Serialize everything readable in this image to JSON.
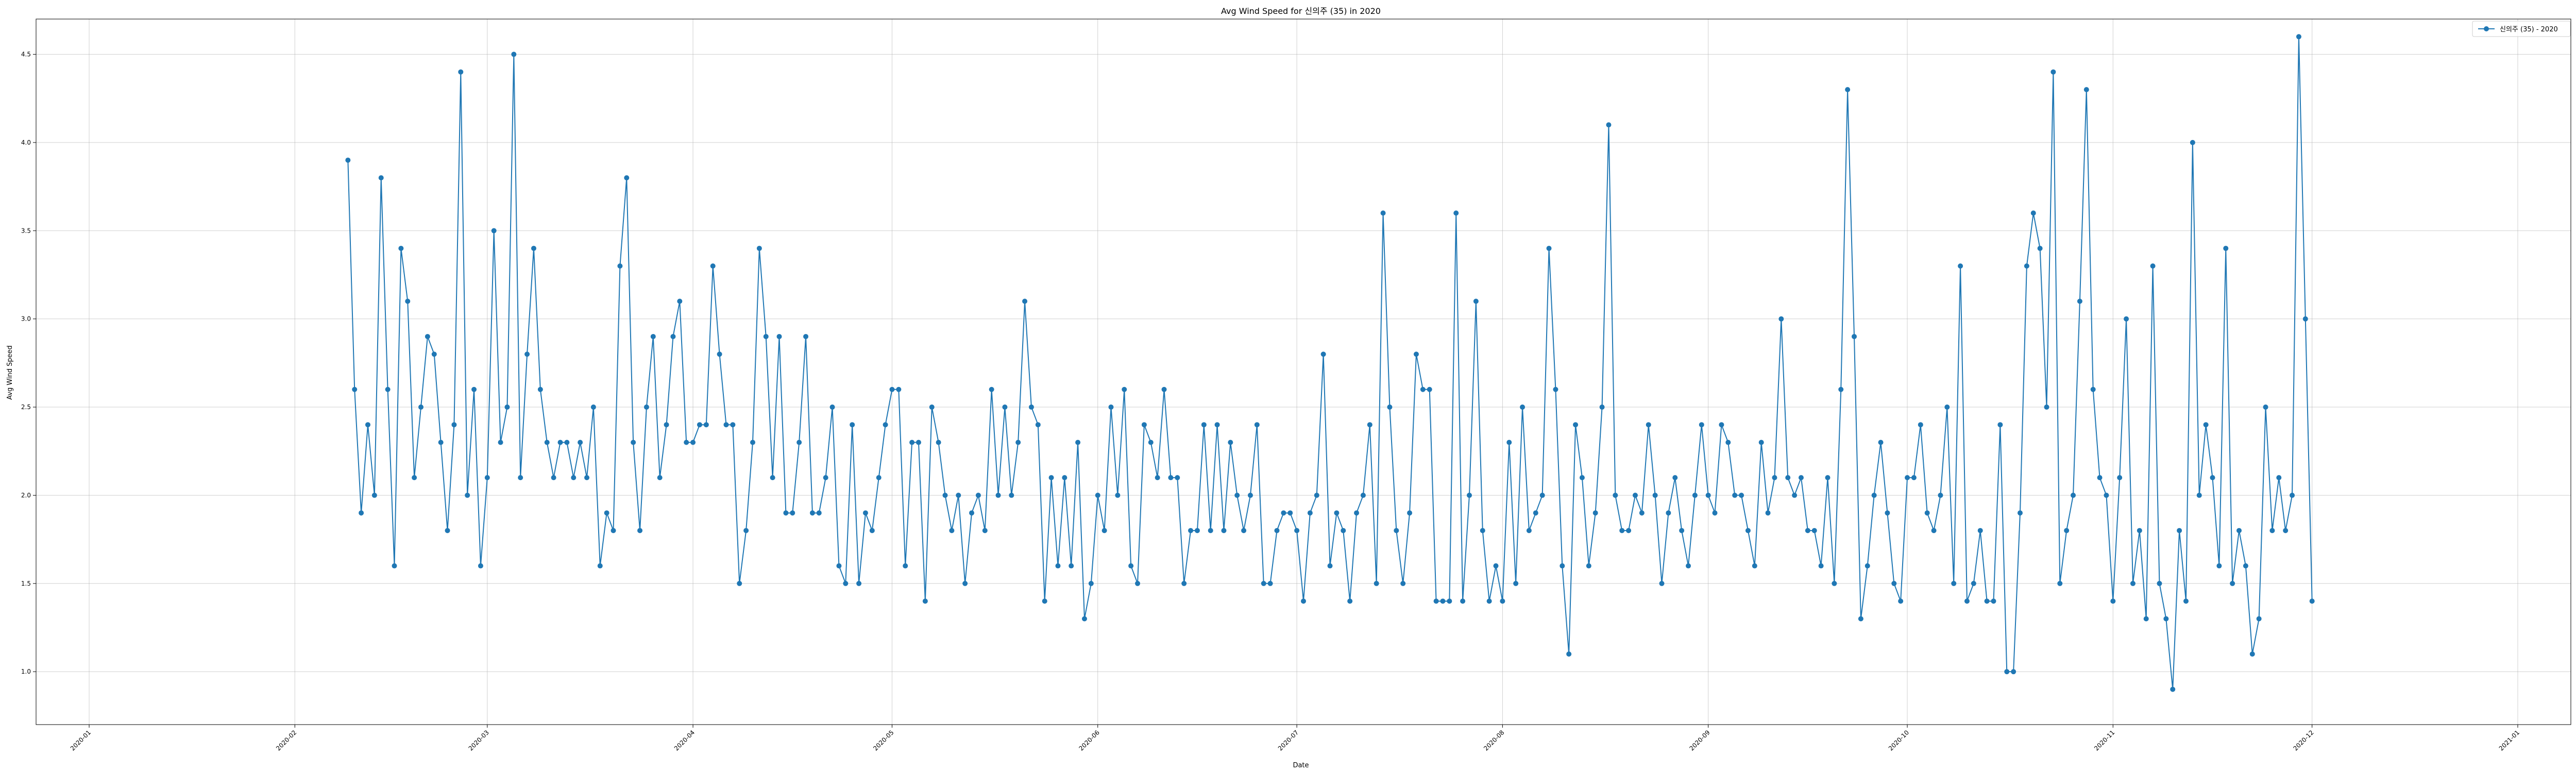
{
  "chart_data": {
    "type": "line",
    "title": "Avg Wind Speed for 신의주 (35) in 2020",
    "xlabel": "Date",
    "ylabel": "Avg Wind Speed",
    "x_range": [
      "2019-12-24",
      "2021-01-09"
    ],
    "y_range": [
      0.7,
      4.7
    ],
    "x_ticks": [
      "2020-01",
      "2020-02",
      "2020-03",
      "2020-04",
      "2020-05",
      "2020-06",
      "2020-07",
      "2020-08",
      "2020-09",
      "2020-10",
      "2020-11",
      "2020-12",
      "2021-01"
    ],
    "x_tick_labels": [
      "2020-01",
      "2020-02",
      "2020-03",
      "2020-04",
      "2020-05",
      "2020-06",
      "2020-07",
      "2020-08",
      "2020-09",
      "2020-10",
      "2020-11",
      "2020-12",
      "2021-01"
    ],
    "y_ticks": [
      1.0,
      1.5,
      2.0,
      2.5,
      3.0,
      3.5,
      4.0,
      4.5
    ],
    "y_tick_labels": [
      "1.0",
      "1.5",
      "2.0",
      "2.5",
      "3.0",
      "3.5",
      "4.0",
      "4.5"
    ],
    "grid": true,
    "legend_position": "top-right",
    "series": [
      {
        "name": "신의주 (35) - 2020",
        "color": "#1f77b4",
        "marker": "circle",
        "start_date": "2020-02-09",
        "values": [
          3.9,
          2.6,
          1.9,
          2.4,
          2.0,
          3.8,
          2.6,
          1.6,
          3.4,
          3.1,
          2.1,
          2.5,
          2.9,
          2.8,
          2.3,
          1.8,
          2.4,
          4.4,
          2.0,
          2.6,
          1.6,
          2.1,
          3.5,
          2.3,
          2.5,
          4.5,
          2.1,
          2.8,
          3.4,
          2.6,
          2.3,
          2.1,
          2.3,
          2.3,
          2.1,
          2.3,
          2.1,
          2.5,
          1.6,
          1.9,
          1.8,
          3.3,
          3.8,
          2.3,
          1.8,
          2.5,
          2.9,
          2.1,
          2.4,
          2.9,
          3.1,
          2.3,
          2.3,
          2.4,
          2.4,
          3.3,
          2.8,
          2.4,
          2.4,
          1.5,
          1.8,
          2.3,
          3.4,
          2.9,
          2.1,
          2.9,
          1.9,
          1.9,
          2.3,
          2.9,
          1.9,
          1.9,
          2.1,
          2.5,
          1.6,
          1.5,
          2.4,
          1.5,
          1.9,
          1.8,
          2.1,
          2.4,
          2.6,
          2.6,
          1.6,
          2.3,
          2.3,
          1.4,
          2.5,
          2.3,
          2.0,
          1.8,
          2.0,
          1.5,
          1.9,
          2.0,
          1.8,
          2.6,
          2.0,
          2.5,
          2.0,
          2.3,
          3.1,
          2.5,
          2.4,
          1.4,
          2.1,
          1.6,
          2.1,
          1.6,
          2.3,
          1.3,
          1.5,
          2.0,
          1.8,
          2.5,
          2.0,
          2.6,
          1.6,
          1.5,
          2.4,
          2.3,
          2.1,
          2.6,
          2.1,
          2.1,
          1.5,
          1.8,
          1.8,
          2.4,
          1.8,
          2.4,
          1.8,
          2.3,
          2.0,
          1.8,
          2.0,
          2.4,
          1.5,
          1.5,
          1.8,
          1.9,
          1.9,
          1.8,
          1.4,
          1.9,
          2.0,
          2.8,
          1.6,
          1.9,
          1.8,
          1.4,
          1.9,
          2.0,
          2.4,
          1.5,
          3.6,
          2.5,
          1.8,
          1.5,
          1.9,
          2.8,
          2.6,
          2.6,
          1.4,
          1.4,
          1.4,
          3.6,
          1.4,
          2.0,
          3.1,
          1.8,
          1.4,
          1.6,
          1.4,
          2.3,
          1.5,
          2.5,
          1.8,
          1.9,
          2.0,
          3.4,
          2.6,
          1.6,
          1.1,
          2.4,
          2.1,
          1.6,
          1.9,
          2.5,
          4.1,
          2.0,
          1.8,
          1.8,
          2.0,
          1.9,
          2.4,
          2.0,
          1.5,
          1.9,
          2.1,
          1.8,
          1.6,
          2.0,
          2.4,
          2.0,
          1.9,
          2.4,
          2.3,
          2.0,
          2.0,
          1.8,
          1.6,
          2.3,
          1.9,
          2.1,
          3.0,
          2.1,
          2.0,
          2.1,
          1.8,
          1.8,
          1.6,
          2.1,
          1.5,
          2.6,
          4.3,
          2.9,
          1.3,
          1.6,
          2.0,
          2.3,
          1.9,
          1.5,
          1.4,
          2.1,
          2.1,
          2.4,
          1.9,
          1.8,
          2.0,
          2.5,
          1.5,
          3.3,
          1.4,
          1.5,
          1.8,
          1.4,
          1.4,
          2.4,
          1.0,
          1.0,
          1.9,
          3.3,
          3.6,
          3.4,
          2.5,
          4.4,
          1.5,
          1.8,
          2.0,
          3.1,
          4.3,
          2.6,
          2.1,
          2.0,
          1.4,
          2.1,
          3.0,
          1.5,
          1.8,
          1.3,
          3.3,
          1.5,
          1.3,
          0.9,
          1.8,
          1.4,
          4.0,
          2.0,
          2.4,
          2.1,
          1.6,
          3.4,
          1.5,
          1.8,
          1.6,
          1.1,
          1.3,
          2.5,
          1.8,
          2.1,
          1.8,
          2.0,
          4.6,
          3.0,
          1.4
        ]
      }
    ]
  }
}
